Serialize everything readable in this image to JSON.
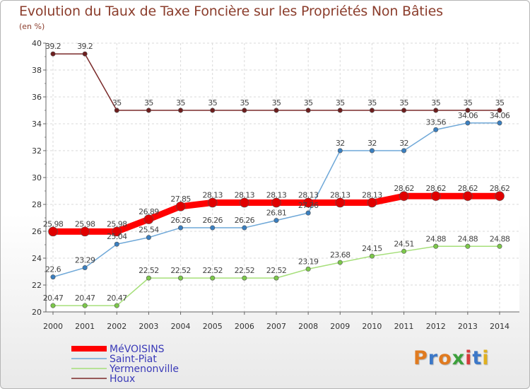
{
  "header": {
    "title": "Evolution du Taux de Taxe Foncière sur les Propriétés Non Bâties",
    "subtitle": "(en %)"
  },
  "logo": {
    "text": "Proxiti",
    "colors": [
      "#e07b20",
      "#3c78c8",
      "#e07b20",
      "#3ca03c",
      "#d63c3c",
      "#3c78c8",
      "#e0b020"
    ]
  },
  "chart_data": {
    "type": "line",
    "title": "Evolution du Taux de Taxe Foncière sur les Propriétés Non Bâties",
    "ylabel": "(en %)",
    "x": [
      2000,
      2001,
      2002,
      2003,
      2004,
      2005,
      2006,
      2007,
      2008,
      2009,
      2010,
      2011,
      2012,
      2013,
      2014
    ],
    "x_labels": [
      "2000",
      "2001",
      "2002",
      "2003",
      "2004",
      "2005",
      "2006",
      "2007",
      "2008",
      "2009",
      "2010",
      "2011",
      "2012",
      "2013",
      "2014"
    ],
    "ylim": [
      20,
      40
    ],
    "y_ticks": [
      20,
      22,
      24,
      26,
      28,
      30,
      32,
      34,
      36,
      38,
      40
    ],
    "grid": true,
    "legend_position": "bottom-left",
    "series": [
      {
        "name": "Houx",
        "color": "#7a2a2a",
        "marker_color": "#6e1e1e",
        "values": [
          39.2,
          39.2,
          35,
          35,
          35,
          35,
          35,
          35,
          35,
          35,
          35,
          35,
          35,
          35,
          35
        ],
        "labels": [
          "39.2",
          "39.2",
          "35",
          "35",
          "35",
          "35",
          "35",
          "35",
          "35",
          "35",
          "35",
          "35",
          "35",
          "35",
          "35"
        ]
      },
      {
        "name": "Saint-Piat",
        "color": "#6fa8d8",
        "marker_color": "#3a7fc0",
        "values": [
          22.6,
          23.29,
          25.04,
          25.54,
          26.26,
          26.26,
          26.26,
          26.81,
          27.36,
          32,
          32,
          32,
          33.56,
          34.06,
          34.06
        ],
        "labels": [
          "22.6",
          "23.29",
          "25.04",
          "25.54",
          "26.26",
          "26.26",
          "26.26",
          "26.81",
          "27.36",
          "32",
          "32",
          "32",
          "33.56",
          "34.06",
          "34.06"
        ]
      },
      {
        "name": "Yermenonville",
        "color": "#a6df7a",
        "marker_color": "#7cc84a",
        "values": [
          20.47,
          20.47,
          20.47,
          22.52,
          22.52,
          22.52,
          22.52,
          22.52,
          23.19,
          23.68,
          24.15,
          24.51,
          24.88,
          24.88,
          24.88
        ],
        "labels": [
          "20.47",
          "20.47",
          "20.47",
          "22.52",
          "22.52",
          "22.52",
          "22.52",
          "22.52",
          "23.19",
          "23.68",
          "24.15",
          "24.51",
          "24.88",
          "24.88",
          "24.88"
        ]
      },
      {
        "name": "MéVOISINS",
        "color": "#ff0000",
        "marker_color": "#e00000",
        "values": [
          25.98,
          25.98,
          25.98,
          26.89,
          27.85,
          28.13,
          28.13,
          28.13,
          28.13,
          28.13,
          28.13,
          28.62,
          28.62,
          28.62,
          28.62
        ],
        "labels": [
          "25.98",
          "25.98",
          "25.98",
          "26.89",
          "27.85",
          "28.13",
          "28.13",
          "28.13",
          "28.13",
          "28.13",
          "28.13",
          "28.62",
          "28.62",
          "28.62",
          "28.62"
        ]
      }
    ],
    "legend_order": [
      "MéVOISINS",
      "Saint-Piat",
      "Yermenonville",
      "Houx"
    ]
  }
}
